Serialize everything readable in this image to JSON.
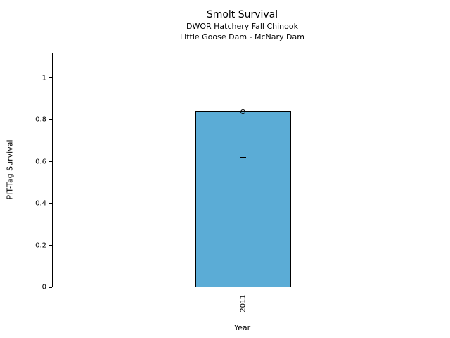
{
  "figure": {
    "title": "Smolt Survival",
    "subtitle_line1": "DWOR Hatchery Fall Chinook",
    "subtitle_line2": "Little Goose Dam - McNary Dam"
  },
  "chart_data": {
    "type": "bar",
    "title": "Smolt Survival",
    "subtitle": [
      "DWOR Hatchery Fall Chinook",
      "Little Goose Dam - McNary Dam"
    ],
    "xlabel": "Year",
    "ylabel": "PIT-Tag Survival",
    "categories": [
      "2011"
    ],
    "values": [
      0.84
    ],
    "error_low": [
      0.62
    ],
    "error_high": [
      1.07
    ],
    "yticks": [
      0,
      0.2,
      0.4,
      0.6,
      0.8,
      1
    ],
    "ytick_labels": [
      "0",
      "0.2",
      "0.4",
      "0.6",
      "0.8",
      "1"
    ],
    "ylim": [
      0,
      1.12
    ],
    "grid": false,
    "legend": "none",
    "marker": "open-circle",
    "colors": {
      "bar_fill": "#5BACD6",
      "bar_edge": "#000000",
      "error_bar": "#000000",
      "text": "#000000",
      "background": "#FFFFFF"
    }
  }
}
